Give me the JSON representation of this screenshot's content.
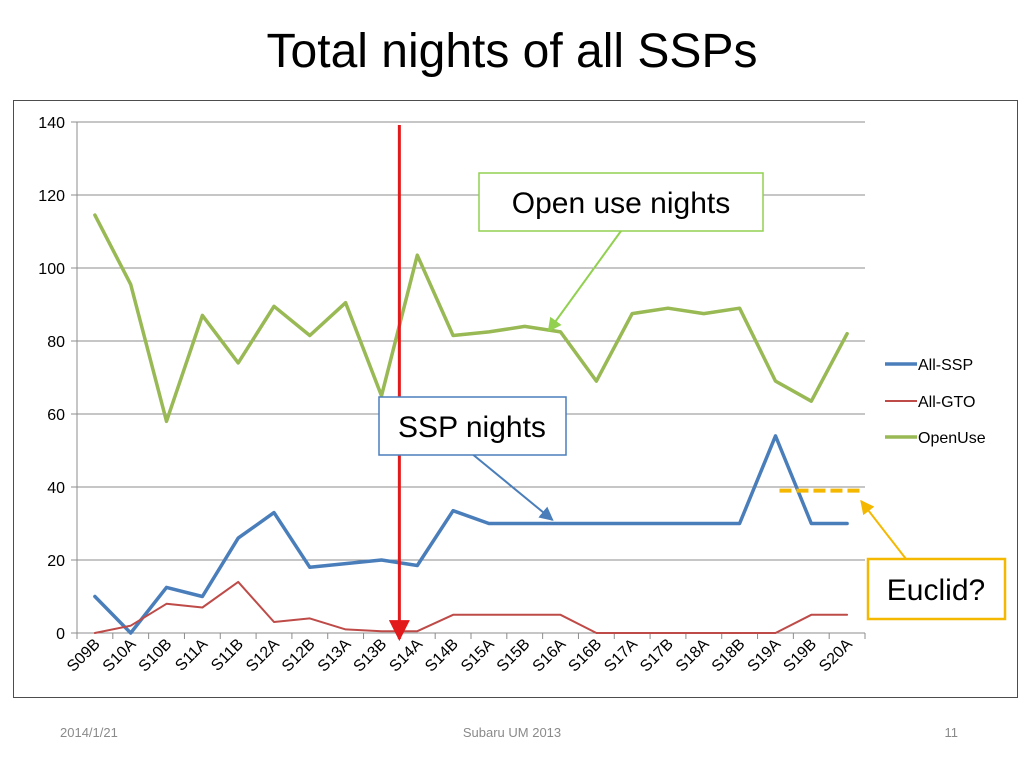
{
  "slide": {
    "title": "Total nights of all SSPs",
    "footer_date": "2014/1/21",
    "footer_center": "Subaru UM 2013",
    "page_number": "11"
  },
  "chart_data": {
    "type": "line",
    "categories": [
      "S09B",
      "S10A",
      "S10B",
      "S11A",
      "S11B",
      "S12A",
      "S12B",
      "S13A",
      "S13B",
      "S14A",
      "S14B",
      "S15A",
      "S15B",
      "S16A",
      "S16B",
      "S17A",
      "S17B",
      "S18A",
      "S18B",
      "S19A",
      "S19B",
      "S20A"
    ],
    "ylim": [
      0,
      140
    ],
    "yticks": [
      0,
      20,
      40,
      60,
      80,
      100,
      120,
      140
    ],
    "grid": true,
    "legend_position": "right",
    "series": [
      {
        "name": "All-SSP",
        "color": "#4a7ebb",
        "width": "thick",
        "values": [
          10,
          0,
          12.5,
          10,
          26,
          33,
          18,
          19,
          20,
          18.5,
          33.5,
          30,
          30,
          30,
          30,
          30,
          30,
          30,
          30,
          54,
          30,
          30
        ]
      },
      {
        "name": "All-GTO",
        "color": "#be4b48",
        "width": "thin",
        "values": [
          0,
          2,
          8,
          7,
          14,
          3,
          4,
          1,
          0.5,
          0.5,
          5,
          5,
          5,
          5,
          0,
          0,
          0,
          0,
          0,
          0,
          5,
          5
        ]
      },
      {
        "name": "OpenUse",
        "color": "#98b954",
        "width": "thick",
        "values": [
          114.5,
          95.5,
          58,
          87,
          74,
          89.5,
          81.5,
          90.5,
          65,
          103.5,
          81.5,
          82.5,
          84,
          82.5,
          69,
          87.5,
          89,
          87.5,
          89,
          69,
          63.5,
          82
        ]
      }
    ],
    "divider": {
      "between": [
        "S13B",
        "S14A"
      ],
      "color": "#e31a1c"
    },
    "euclid_line": {
      "value": 39,
      "from": "S19A",
      "to": "S20A",
      "color": "#f5b800",
      "style": "dashed"
    },
    "annotations": [
      {
        "text": "Open use nights",
        "border_color": "#92d050",
        "arrow_color": "#92d050",
        "points_to": "OpenUse at S16A"
      },
      {
        "text": "SSP nights",
        "border_color": "#4a7ebb",
        "arrow_color": "#4a7ebb",
        "points_to": "All-SSP at S16A"
      },
      {
        "text": "Euclid?",
        "border_color": "#f5b800",
        "arrow_color": "#f5b800",
        "points_to": "dashed line at S20A"
      }
    ]
  }
}
